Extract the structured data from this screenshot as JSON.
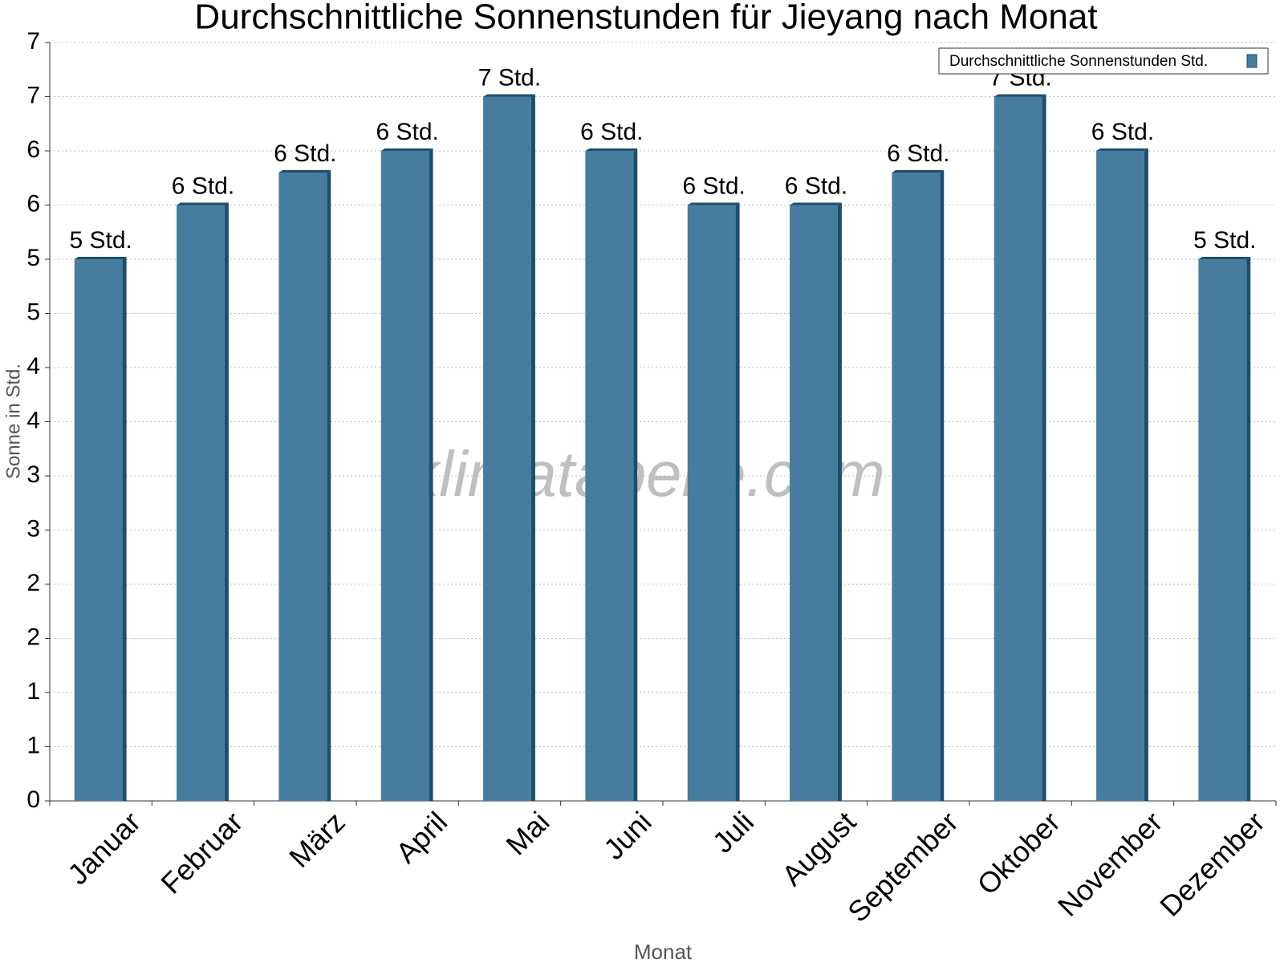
{
  "chart_data": {
    "type": "bar",
    "title": "Durchschnittliche Sonnenstunden für Jieyang nach Monat",
    "x_label": "Monat",
    "y_label": "Sonne in Std.",
    "watermark": "klimatabelle.com",
    "categories": [
      "Januar",
      "Februar",
      "März",
      "April",
      "Mai",
      "Juni",
      "Juli",
      "August",
      "September",
      "Oktober",
      "November",
      "Dezember"
    ],
    "series": [
      {
        "name": "Durchschnittliche Sonnenstunden Std.",
        "color": "#467c9e",
        "values": [
          5.0,
          5.5,
          5.8,
          6.0,
          6.5,
          6.0,
          5.5,
          5.5,
          5.8,
          6.5,
          6.0,
          5.0
        ],
        "value_labels": [
          "5 Std.",
          "6 Std.",
          "6 Std.",
          "6 Std.",
          "7 Std.",
          "6 Std.",
          "6 Std.",
          "6 Std.",
          "6 Std.",
          "7 Std.",
          "6 Std.",
          "5 Std."
        ]
      }
    ],
    "ylim": [
      0,
      7
    ],
    "yticks": [
      0,
      {
        "value": 0.5,
        "label": "1"
      },
      1,
      {
        "value": 1.5,
        "label": "2"
      },
      2,
      {
        "value": 2.5,
        "label": "3"
      },
      3,
      {
        "value": 3.5,
        "label": "4"
      },
      4,
      {
        "value": 4.5,
        "label": "5"
      },
      5,
      {
        "value": 5.5,
        "label": "6"
      },
      6,
      {
        "value": 6.5,
        "label": "7"
      },
      7
    ],
    "grid": true,
    "legend": "top-right"
  }
}
